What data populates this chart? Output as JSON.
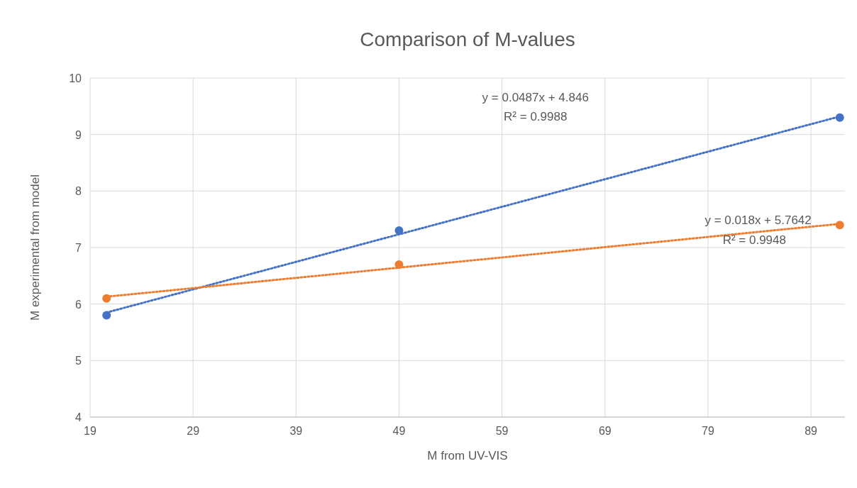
{
  "chart_data": {
    "type": "scatter",
    "title": "Comparison of M-values",
    "xlabel": "M from UV-VIS",
    "ylabel": "M experimental from model",
    "xlim": [
      19,
      92.3
    ],
    "xticks": [
      19,
      29,
      39,
      49,
      59,
      69,
      79,
      89
    ],
    "ylim": [
      4,
      10
    ],
    "yticks": [
      4,
      5,
      6,
      7,
      8,
      9,
      10
    ],
    "grid": true,
    "marker": "circle",
    "series": [
      {
        "color": "#4472c4",
        "x": [
          20.6,
          49,
          91.8
        ],
        "values": [
          5.8,
          7.3,
          9.3
        ]
      },
      {
        "color": "#ed7d31",
        "x": [
          20.6,
          49,
          91.8
        ],
        "values": [
          6.1,
          6.7,
          7.4
        ]
      },
      {
        "type": "line",
        "color": "#4472c4",
        "line_style": "dotted",
        "marker": "none",
        "x": [
          20.6,
          91.8
        ],
        "values": [
          5.85,
          9.32
        ]
      },
      {
        "type": "line",
        "color": "#ed7d31",
        "line_style": "dotted",
        "marker": "none",
        "x": [
          20.6,
          91.8
        ],
        "values": [
          6.13,
          7.42
        ]
      }
    ],
    "annotations": [
      "y = 0.0487x + 4.846",
      "R² = 0.9988",
      "y = 0.018x + 5.7642",
      "R² = 0.9948"
    ]
  }
}
